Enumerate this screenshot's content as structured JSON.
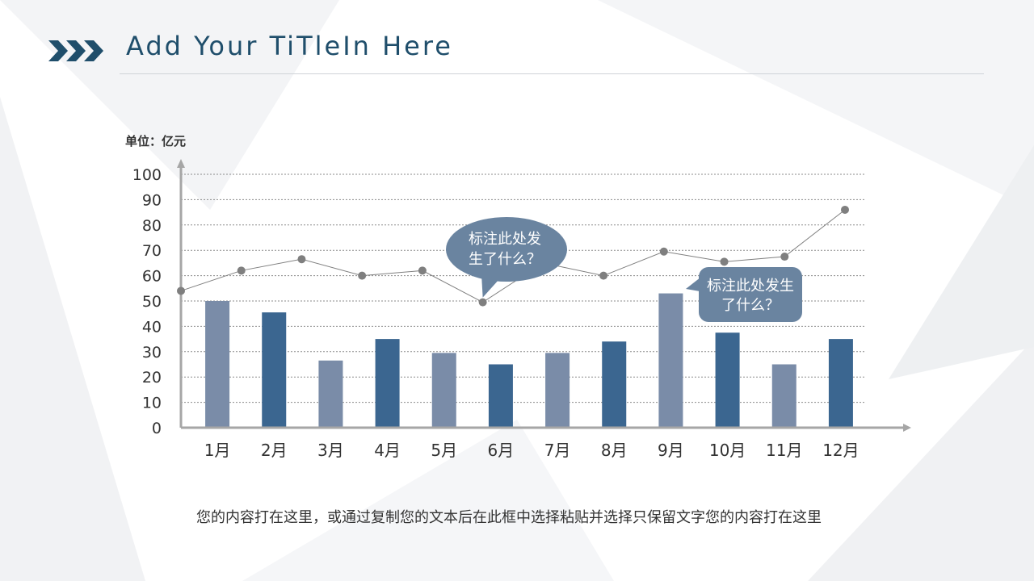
{
  "slide": {
    "title": "Add Your TiTleIn Here",
    "footer_text": "您的内容打在这里，或通过复制您的文本后在此框中选择粘贴并选择只保留文字您的内容打在这里",
    "title_color": "#1f4e6b"
  },
  "chart_data": {
    "type": "bar",
    "unit_label": "单位：亿元",
    "categories": [
      "1月",
      "2月",
      "3月",
      "4月",
      "5月",
      "6月",
      "7月",
      "8月",
      "9月",
      "10月",
      "11月",
      "12月"
    ],
    "series": [
      {
        "type": "bar",
        "values": [
          50,
          45.5,
          26.5,
          35,
          29.5,
          25,
          29.5,
          34,
          53,
          37.5,
          25,
          35
        ],
        "colors": [
          "#7a8ca8",
          "#3b6690"
        ]
      },
      {
        "type": "line",
        "values": [
          54,
          62,
          66.5,
          60,
          62,
          49.5,
          65,
          60,
          69.5,
          65.5,
          67.5,
          86
        ],
        "color": "#7f7f7f"
      }
    ],
    "ylim": [
      0,
      100
    ],
    "yticks": [
      0,
      10,
      20,
      30,
      40,
      50,
      60,
      70,
      80,
      90,
      100
    ],
    "grid": true,
    "annotations": [
      {
        "text_line1": "标注此处发",
        "text_line2": "生了什么？",
        "target_category": "6月",
        "color": "#6a84a0"
      },
      {
        "text_line1": "标注此处发生",
        "text_line2": "了什么？",
        "target_category": "9月",
        "color": "#6a84a0"
      }
    ]
  }
}
